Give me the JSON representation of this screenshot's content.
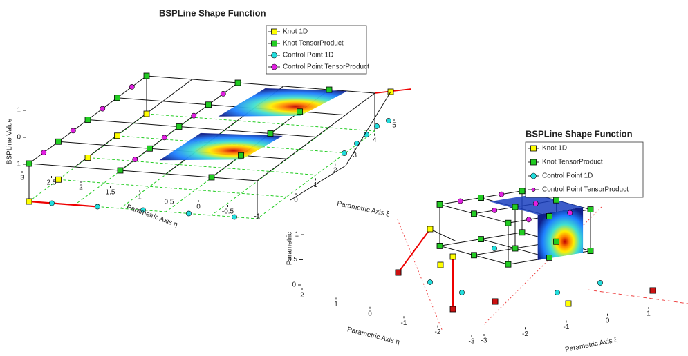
{
  "chart_data": [
    {
      "type": "surface3d",
      "title": "BSPLine Shape Function",
      "xlabel": "Parametric Axis ξ",
      "ylabel": "Parametric Axis η",
      "zlabel": "BSPLine Value",
      "xlim": [
        0,
        5
      ],
      "xticks": [
        0,
        1,
        2,
        3,
        4,
        5
      ],
      "ylim": [
        -1,
        3
      ],
      "yticks": [
        -1,
        -0.5,
        0,
        0.5,
        1,
        1.5,
        2,
        2.5,
        3
      ],
      "zlim": [
        -1,
        1
      ],
      "zticks": [
        -1,
        0,
        1
      ],
      "legend": "upper right",
      "series": [
        {
          "name": "Knot 1D",
          "color": "#ffff00",
          "marker": "square"
        },
        {
          "name": "Knot TensorProduct",
          "color": "#22cc22",
          "marker": "square"
        },
        {
          "name": "Control Point 1D",
          "color": "#22dddd",
          "marker": "circle"
        },
        {
          "name": "Control Point TensorProduct",
          "color": "#e020e0",
          "marker": "circle"
        }
      ]
    },
    {
      "type": "solid3d",
      "title": "BSPLine Shape Function",
      "xlabel": "Parametric Axis ξ",
      "ylabel": "Parametric Axis η",
      "zlabel": "Parametric",
      "xlim": [
        -3,
        1
      ],
      "xticks": [
        -3,
        -2,
        -1,
        0,
        1
      ],
      "ylim": [
        -3,
        2
      ],
      "yticks": [
        -3,
        -2,
        -1,
        0,
        1,
        2
      ],
      "zlim": [
        0,
        1
      ],
      "zticks": [
        0,
        0.5,
        1
      ],
      "legend": "upper right",
      "series": [
        {
          "name": "Knot 1D",
          "color": "#ffff00",
          "marker": "square"
        },
        {
          "name": "Knot TensorProduct",
          "color": "#22cc22",
          "marker": "square"
        },
        {
          "name": "Control Point 1D",
          "color": "#22dddd",
          "marker": "circle"
        },
        {
          "name": "Control Point TensorProduct",
          "color": "#e020e0",
          "marker": "circle"
        }
      ]
    }
  ]
}
